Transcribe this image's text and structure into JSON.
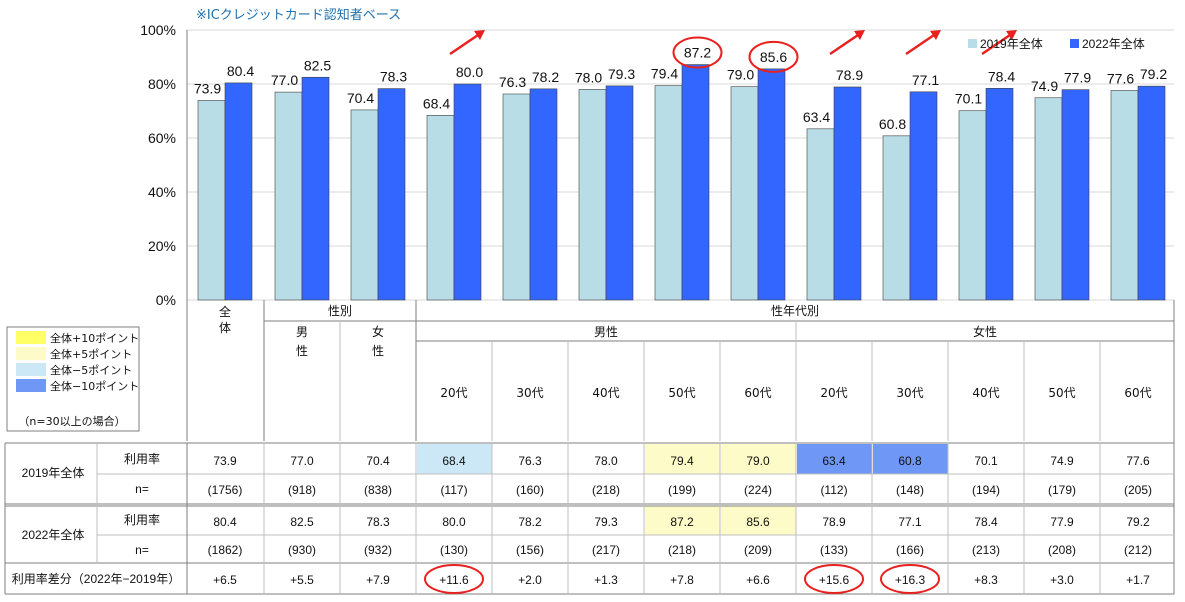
{
  "note": "※ICクレジットカード認知者ベース",
  "chart_data": {
    "type": "bar",
    "yticks": [
      "100%",
      "80%",
      "60%",
      "40%",
      "20%",
      "0%"
    ],
    "ylim": [
      0,
      100
    ],
    "categories": [
      "全体",
      "男性",
      "女性",
      "男性20代",
      "男性30代",
      "男性40代",
      "男性50代",
      "男性60代",
      "女性20代",
      "女性30代",
      "女性40代",
      "女性50代",
      "女性60代"
    ],
    "series": [
      {
        "name": "2019年全体",
        "color": "#b8dde6",
        "values": [
          73.9,
          77.0,
          70.4,
          68.4,
          76.3,
          78.0,
          79.4,
          79.0,
          63.4,
          60.8,
          70.1,
          74.9,
          77.6
        ]
      },
      {
        "name": "2022年全体",
        "color": "#3366ff",
        "values": [
          80.4,
          82.5,
          78.3,
          80.0,
          78.2,
          79.3,
          87.2,
          85.6,
          78.9,
          77.1,
          78.4,
          77.9,
          79.2
        ]
      }
    ],
    "data_labels_2019": [
      "73.9",
      "77.0",
      "70.4",
      "68.4",
      "76.3",
      "78.0",
      "79.4",
      "79.0",
      "63.4",
      "60.8",
      "70.1",
      "74.9",
      "77.6"
    ],
    "data_labels_2022": [
      "80.4",
      "82.5",
      "78.3",
      "80.0",
      "78.2",
      "79.3",
      "87.2",
      "85.6",
      "78.9",
      "77.1",
      "78.4",
      "77.9",
      "79.2"
    ],
    "legend_position": "top-right",
    "circled_bar_labels_2022": [
      6,
      7
    ],
    "arrow_categories": [
      3,
      8,
      9,
      10
    ],
    "grid": true
  },
  "table": {
    "header": {
      "all_label": "全体",
      "gender_group": "性別",
      "age_group": "性年代別",
      "male": "男性",
      "female": "女性",
      "male_col": "男\n性",
      "female_col": "女\n性",
      "ages": [
        "20代",
        "30代",
        "40代",
        "50代",
        "60代"
      ]
    },
    "row_labels": {
      "y2019": "2019年全体",
      "y2022": "2022年全体",
      "usage": "利用率",
      "n": "n=",
      "diff": "利用率差分（2022年−2019年）"
    },
    "rows": {
      "usage_2019": [
        "73.9",
        "77.0",
        "70.4",
        "68.4",
        "76.3",
        "78.0",
        "79.4",
        "79.0",
        "63.4",
        "60.8",
        "70.1",
        "74.9",
        "77.6"
      ],
      "n_2019": [
        "(1756)",
        "(918)",
        "(838)",
        "(117)",
        "(160)",
        "(218)",
        "(199)",
        "(224)",
        "(112)",
        "(148)",
        "(194)",
        "(179)",
        "(205)"
      ],
      "usage_2022": [
        "80.4",
        "82.5",
        "78.3",
        "80.0",
        "78.2",
        "79.3",
        "87.2",
        "85.6",
        "78.9",
        "77.1",
        "78.4",
        "77.9",
        "79.2"
      ],
      "n_2022": [
        "(1862)",
        "(930)",
        "(932)",
        "(130)",
        "(156)",
        "(217)",
        "(218)",
        "(209)",
        "(133)",
        "(166)",
        "(213)",
        "(208)",
        "(212)"
      ],
      "diff": [
        "+6.5",
        "+5.5",
        "+7.9",
        "+11.6",
        "+2.0",
        "+1.3",
        "+7.8",
        "+6.6",
        "+15.6",
        "+16.3",
        "+8.3",
        "+3.0",
        "+1.7"
      ]
    },
    "highlights_2019": {
      "3": "#cce8f7",
      "6": "#fdfbc7",
      "7": "#fdfbc7",
      "8": "#6f97f5",
      "9": "#6f97f5"
    },
    "highlights_2022": {
      "6": "#fdfbc7",
      "7": "#fdfbc7"
    },
    "circled_diff": [
      3,
      8,
      9
    ]
  },
  "key": {
    "items": [
      {
        "label": "全体+10ポイント",
        "color": "#ffff66"
      },
      {
        "label": "全体+5ポイント",
        "color": "#fdfbc7"
      },
      {
        "label": "全体−5ポイント",
        "color": "#cce8f7"
      },
      {
        "label": "全体−10ポイント",
        "color": "#6f97f5"
      }
    ],
    "footnote": "（n=30以上の場合）"
  },
  "colors": {
    "circle": "#e8201e",
    "arrow": "#e8201e"
  }
}
